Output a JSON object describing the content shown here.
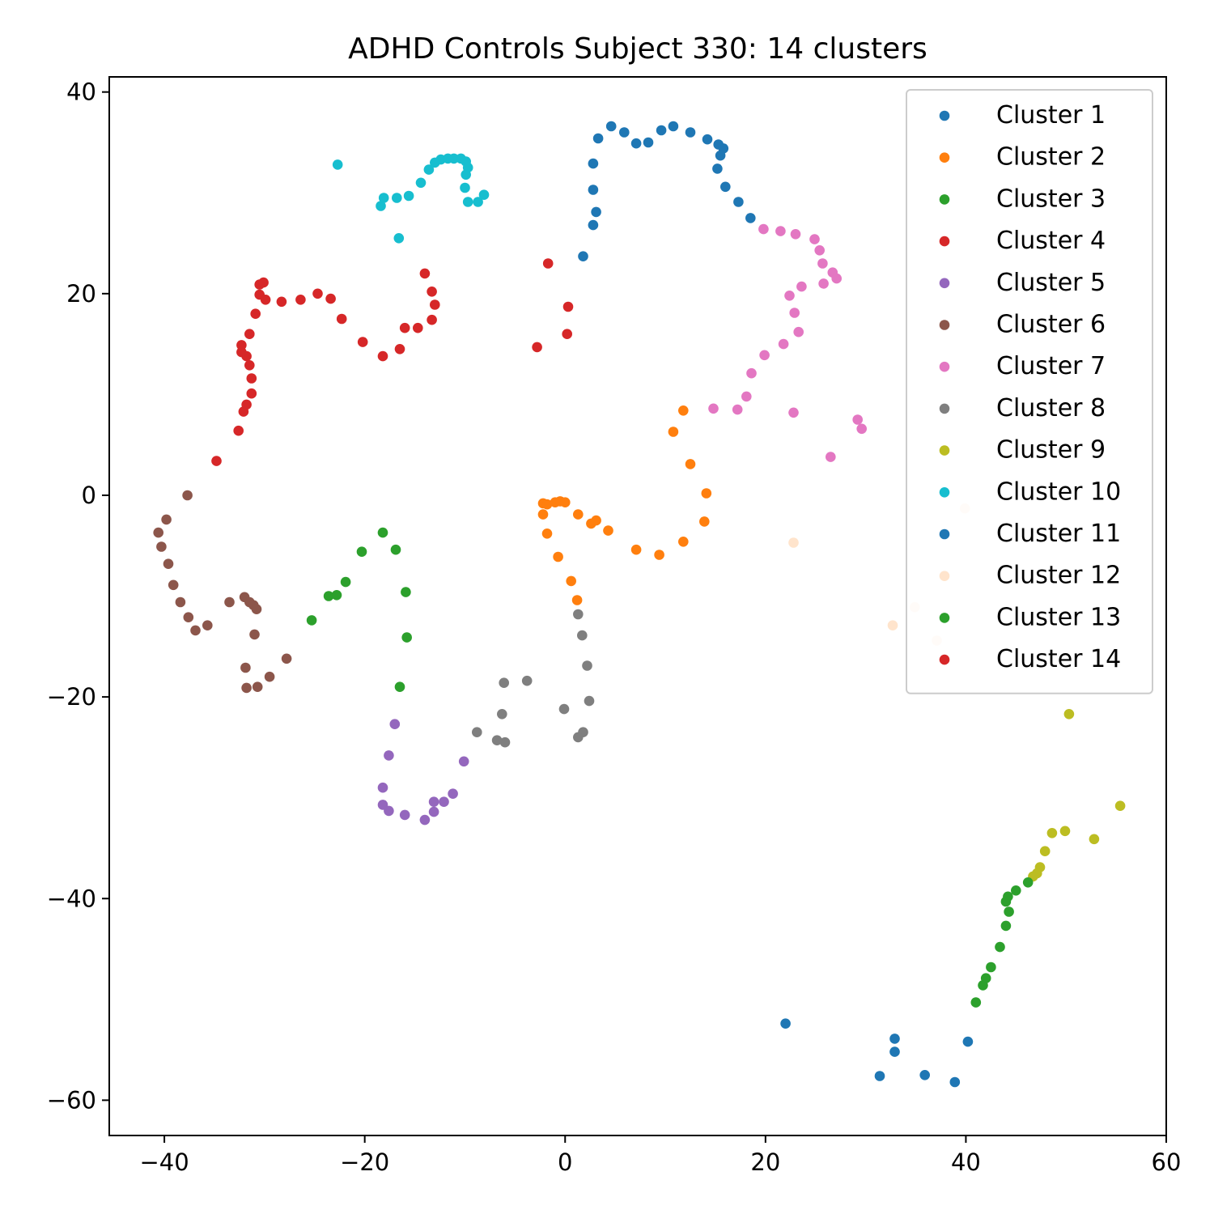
{
  "chart_data": {
    "type": "scatter",
    "title": "ADHD Controls Subject 330: 14 clusters",
    "xlabel": "",
    "ylabel": "",
    "xlim": [
      -45.5,
      60
    ],
    "ylim": [
      -63.5,
      41.5
    ],
    "xticks": [
      -40,
      -20,
      0,
      20,
      40,
      60
    ],
    "xtick_labels": [
      "−40",
      "−20",
      "0",
      "20",
      "40",
      "60"
    ],
    "yticks": [
      40,
      20,
      0,
      -20,
      -40,
      -60
    ],
    "ytick_labels": [
      "40",
      "20",
      "0",
      "−20",
      "−40",
      "−60"
    ],
    "grid": false,
    "legend_position": "top-right",
    "series": [
      {
        "name": "Cluster 1",
        "color": "#1f77b4",
        "points": [
          [
            1.8,
            23.7
          ],
          [
            2.8,
            26.8
          ],
          [
            3.1,
            28.1
          ],
          [
            2.8,
            30.3
          ],
          [
            2.8,
            32.9
          ],
          [
            3.3,
            35.4
          ],
          [
            4.6,
            36.6
          ],
          [
            5.9,
            36.0
          ],
          [
            7.1,
            34.9
          ],
          [
            8.3,
            35.0
          ],
          [
            9.6,
            36.2
          ],
          [
            10.8,
            36.6
          ],
          [
            12.5,
            36.0
          ],
          [
            14.2,
            35.3
          ],
          [
            15.3,
            34.8
          ],
          [
            15.8,
            34.4
          ],
          [
            15.5,
            33.7
          ],
          [
            15.2,
            32.4
          ],
          [
            16.0,
            30.6
          ],
          [
            17.3,
            29.1
          ],
          [
            18.5,
            27.5
          ]
        ]
      },
      {
        "name": "Cluster 2",
        "color": "#ff7f0e",
        "points": [
          [
            -2.2,
            -0.8
          ],
          [
            -1.8,
            -0.9
          ],
          [
            -1.0,
            -0.7
          ],
          [
            -0.5,
            -0.6
          ],
          [
            0,
            -0.7
          ],
          [
            -2.2,
            -1.9
          ],
          [
            1.3,
            -1.9
          ],
          [
            2.6,
            -2.8
          ],
          [
            3.1,
            -2.5
          ],
          [
            4.3,
            -3.5
          ],
          [
            -1.8,
            -3.8
          ],
          [
            -0.7,
            -6.1
          ],
          [
            0.6,
            -8.5
          ],
          [
            1.2,
            -10.4
          ],
          [
            7.1,
            -5.4
          ],
          [
            9.4,
            -5.9
          ],
          [
            11.8,
            -4.6
          ],
          [
            13.9,
            -2.6
          ],
          [
            14.1,
            0.2
          ],
          [
            12.5,
            3.1
          ],
          [
            10.8,
            6.3
          ],
          [
            11.8,
            8.4
          ]
        ]
      },
      {
        "name": "Cluster 3",
        "color": "#2ca02c",
        "points": [
          [
            -25.3,
            -12.4
          ],
          [
            -23.6,
            -10.0
          ],
          [
            -22.8,
            -9.9
          ],
          [
            -21.9,
            -8.6
          ],
          [
            -20.3,
            -5.6
          ],
          [
            -18.2,
            -3.7
          ],
          [
            -16.9,
            -5.4
          ],
          [
            -15.9,
            -9.6
          ],
          [
            -15.8,
            -14.1
          ],
          [
            -16.5,
            -19.0
          ]
        ]
      },
      {
        "name": "Cluster 4",
        "color": "#d62728",
        "points": [
          [
            -34.8,
            3.4
          ],
          [
            -32.6,
            6.4
          ],
          [
            -32.1,
            8.3
          ],
          [
            -31.8,
            9.0
          ],
          [
            -31.3,
            10.1
          ],
          [
            -31.3,
            11.6
          ],
          [
            -31.5,
            12.9
          ],
          [
            -31.8,
            13.8
          ],
          [
            -32.3,
            14.2
          ],
          [
            -32.3,
            14.9
          ],
          [
            -31.5,
            16.0
          ],
          [
            -30.9,
            18.0
          ],
          [
            -30.5,
            19.9
          ],
          [
            -29.9,
            19.4
          ],
          [
            -30.5,
            20.9
          ],
          [
            -30.1,
            21.1
          ],
          [
            -28.3,
            19.2
          ],
          [
            -26.4,
            19.4
          ],
          [
            -24.7,
            20.0
          ],
          [
            -23.4,
            19.5
          ],
          [
            -22.3,
            17.5
          ],
          [
            -20.2,
            15.2
          ],
          [
            -18.2,
            13.8
          ],
          [
            -16.5,
            14.5
          ],
          [
            -16.0,
            16.6
          ],
          [
            -14.7,
            16.6
          ],
          [
            -13.3,
            17.4
          ],
          [
            -13.0,
            18.9
          ],
          [
            -13.3,
            20.2
          ],
          [
            -14.0,
            22.0
          ],
          [
            -2.8,
            14.7
          ],
          [
            -1.7,
            23.0
          ],
          [
            0.2,
            16.0
          ],
          [
            0.3,
            18.7
          ]
        ]
      },
      {
        "name": "Cluster 5",
        "color": "#9467bd",
        "points": [
          [
            -17.0,
            -22.7
          ],
          [
            -17.6,
            -25.8
          ],
          [
            -18.2,
            -29.0
          ],
          [
            -18.2,
            -30.7
          ],
          [
            -17.6,
            -31.3
          ],
          [
            -16.0,
            -31.7
          ],
          [
            -14.0,
            -32.2
          ],
          [
            -13.1,
            -31.4
          ],
          [
            -13.1,
            -30.4
          ],
          [
            -12.1,
            -30.4
          ],
          [
            -11.2,
            -29.6
          ],
          [
            -10.1,
            -26.4
          ]
        ]
      },
      {
        "name": "Cluster 6",
        "color": "#8c564b",
        "points": [
          [
            -37.7,
            0
          ],
          [
            -39.8,
            -2.4
          ],
          [
            -40.6,
            -3.7
          ],
          [
            -40.3,
            -5.1
          ],
          [
            -39.6,
            -6.8
          ],
          [
            -39.1,
            -8.9
          ],
          [
            -38.4,
            -10.6
          ],
          [
            -37.6,
            -12.1
          ],
          [
            -36.9,
            -13.4
          ],
          [
            -35.7,
            -12.9
          ],
          [
            -33.5,
            -10.6
          ],
          [
            -32.0,
            -10.1
          ],
          [
            -31.5,
            -10.6
          ],
          [
            -31.1,
            -10.9
          ],
          [
            -30.8,
            -11.3
          ],
          [
            -31.0,
            -13.8
          ],
          [
            -31.9,
            -17.1
          ],
          [
            -31.8,
            -19.1
          ],
          [
            -30.7,
            -19.0
          ],
          [
            -29.5,
            -18.0
          ],
          [
            -27.8,
            -16.2
          ]
        ]
      },
      {
        "name": "Cluster 7",
        "color": "#e377c2",
        "points": [
          [
            19.8,
            26.4
          ],
          [
            21.5,
            26.2
          ],
          [
            23.0,
            25.9
          ],
          [
            24.9,
            25.4
          ],
          [
            25.4,
            24.3
          ],
          [
            25.7,
            23.0
          ],
          [
            26.7,
            22.1
          ],
          [
            27.1,
            21.5
          ],
          [
            25.8,
            21.0
          ],
          [
            23.6,
            20.7
          ],
          [
            22.4,
            19.8
          ],
          [
            22.9,
            18.1
          ],
          [
            23.3,
            16.2
          ],
          [
            21.8,
            15.0
          ],
          [
            19.9,
            13.9
          ],
          [
            18.6,
            12.1
          ],
          [
            18.1,
            9.8
          ],
          [
            17.2,
            8.5
          ],
          [
            14.8,
            8.6
          ],
          [
            22.8,
            8.2
          ],
          [
            29.2,
            7.5
          ],
          [
            29.6,
            6.6
          ],
          [
            26.5,
            3.8
          ]
        ]
      },
      {
        "name": "Cluster 8",
        "color": "#7f7f7f",
        "points": [
          [
            1.3,
            -11.8
          ],
          [
            1.7,
            -13.9
          ],
          [
            2.2,
            -16.9
          ],
          [
            2.4,
            -20.4
          ],
          [
            1.8,
            -23.5
          ],
          [
            1.3,
            -24.0
          ],
          [
            -0.1,
            -21.2
          ],
          [
            -3.8,
            -18.4
          ],
          [
            -6.1,
            -18.6
          ],
          [
            -6.3,
            -21.7
          ],
          [
            -6.0,
            -24.5
          ],
          [
            -6.8,
            -24.3
          ],
          [
            -8.8,
            -23.5
          ]
        ]
      },
      {
        "name": "Cluster 9",
        "color": "#bcbd22",
        "points": [
          [
            50.3,
            -21.7
          ],
          [
            55.4,
            -30.8
          ],
          [
            52.8,
            -34.1
          ],
          [
            49.9,
            -33.3
          ],
          [
            48.6,
            -33.5
          ],
          [
            47.9,
            -35.3
          ],
          [
            47.4,
            -36.9
          ],
          [
            47.1,
            -37.5
          ],
          [
            46.7,
            -37.8
          ]
        ]
      },
      {
        "name": "Cluster 10",
        "color": "#17becf",
        "points": [
          [
            -22.7,
            32.8
          ],
          [
            -18.4,
            28.7
          ],
          [
            -18.1,
            29.5
          ],
          [
            -16.8,
            29.5
          ],
          [
            -15.6,
            29.7
          ],
          [
            -14.4,
            31.0
          ],
          [
            -13.6,
            32.3
          ],
          [
            -13.0,
            33.0
          ],
          [
            -12.4,
            33.3
          ],
          [
            -11.7,
            33.4
          ],
          [
            -11.1,
            33.4
          ],
          [
            -10.4,
            33.4
          ],
          [
            -9.9,
            33.1
          ],
          [
            -9.7,
            32.5
          ],
          [
            -9.9,
            31.8
          ],
          [
            -10.0,
            30.5
          ],
          [
            -9.7,
            29.1
          ],
          [
            -8.7,
            29.1
          ],
          [
            -8.1,
            29.8
          ],
          [
            -16.6,
            25.5
          ]
        ]
      },
      {
        "name": "Cluster 11",
        "color": "#1f77b4",
        "points": [
          [
            22.0,
            -52.4
          ],
          [
            32.9,
            -53.9
          ],
          [
            32.9,
            -55.2
          ],
          [
            31.4,
            -57.6
          ],
          [
            35.9,
            -57.5
          ],
          [
            38.9,
            -58.2
          ],
          [
            40.2,
            -54.2
          ]
        ]
      },
      {
        "name": "Cluster 12",
        "color": "#ffe4cc",
        "points": [
          [
            39.9,
            -1.3
          ],
          [
            34.9,
            -11.1
          ],
          [
            37.1,
            -14.4
          ],
          [
            32.7,
            -12.9
          ],
          [
            22.8,
            -4.7
          ]
        ]
      },
      {
        "name": "Cluster 13",
        "color": "#2ca02c",
        "points": [
          [
            46.2,
            -38.4
          ],
          [
            45.0,
            -39.2
          ],
          [
            44.2,
            -39.8
          ],
          [
            44.0,
            -40.3
          ],
          [
            44.3,
            -41.3
          ],
          [
            44.0,
            -42.7
          ],
          [
            43.4,
            -44.8
          ],
          [
            42.5,
            -46.8
          ],
          [
            42.0,
            -47.9
          ],
          [
            41.7,
            -48.6
          ],
          [
            41.0,
            -50.3
          ]
        ]
      },
      {
        "name": "Cluster 14",
        "color": "#d62728",
        "points": []
      }
    ]
  }
}
